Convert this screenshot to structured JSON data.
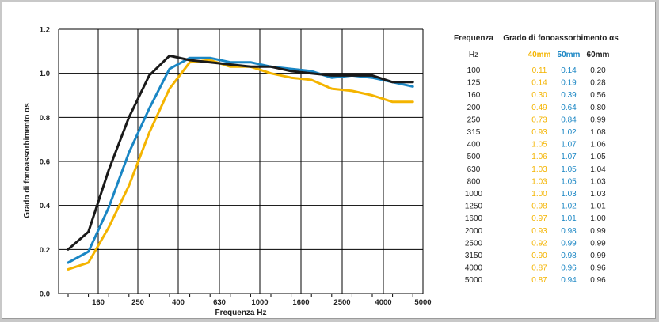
{
  "colors": {
    "s40": "#f4b400",
    "s50": "#1a86c4",
    "s60": "#1a1a1a",
    "grid": "#000000"
  },
  "chart_data": {
    "type": "line",
    "xlabel": "Frequenza  Hz",
    "ylabel": "Grado di fonoassorbimento αs",
    "ylim": [
      0,
      1.2
    ],
    "yticks": [
      "0.0",
      "0.2",
      "0.4",
      "0.6",
      "0.8",
      "1.0",
      "1.2"
    ],
    "xtick_labels": [
      "160",
      "250",
      "400",
      "630",
      "1000",
      "1600",
      "2500",
      "4000",
      "5000"
    ],
    "x": [
      "100",
      "125",
      "160",
      "200",
      "250",
      "315",
      "400",
      "500",
      "630",
      "800",
      "1000",
      "1250",
      "1600",
      "2000",
      "2500",
      "3150",
      "4000",
      "5000"
    ],
    "series": [
      {
        "name": "40mm",
        "values": [
          0.11,
          0.14,
          0.3,
          0.49,
          0.73,
          0.93,
          1.05,
          1.06,
          1.03,
          1.03,
          1.0,
          0.98,
          0.97,
          0.93,
          0.92,
          0.9,
          0.87,
          0.87
        ]
      },
      {
        "name": "50mm",
        "values": [
          0.14,
          0.19,
          0.39,
          0.64,
          0.84,
          1.02,
          1.07,
          1.07,
          1.05,
          1.05,
          1.03,
          1.02,
          1.01,
          0.98,
          0.99,
          0.98,
          0.96,
          0.94
        ]
      },
      {
        "name": "60mm",
        "values": [
          0.2,
          0.28,
          0.56,
          0.8,
          0.99,
          1.08,
          1.06,
          1.05,
          1.04,
          1.03,
          1.03,
          1.01,
          1.0,
          0.99,
          0.99,
          0.99,
          0.96,
          0.96
        ]
      }
    ],
    "grid": true
  },
  "table": {
    "col_freq": "Frequenza",
    "col_grade": "Grado di fonoassorbimento αs",
    "unit": "Hz",
    "col_40": "40mm",
    "col_50": "50mm",
    "col_60": "60mm",
    "rows": [
      [
        "100",
        "0.11",
        "0.14",
        "0.20"
      ],
      [
        "125",
        "0.14",
        "0.19",
        "0.28"
      ],
      [
        "160",
        "0.30",
        "0.39",
        "0.56"
      ],
      [
        "200",
        "0.49",
        "0.64",
        "0.80"
      ],
      [
        "250",
        "0.73",
        "0.84",
        "0.99"
      ],
      [
        "315",
        "0.93",
        "1.02",
        "1.08"
      ],
      [
        "400",
        "1.05",
        "1.07",
        "1.06"
      ],
      [
        "500",
        "1.06",
        "1.07",
        "1.05"
      ],
      [
        "630",
        "1.03",
        "1.05",
        "1.04"
      ],
      [
        "800",
        "1.03",
        "1.05",
        "1.03"
      ],
      [
        "1000",
        "1.00",
        "1.03",
        "1.03"
      ],
      [
        "1250",
        "0.98",
        "1.02",
        "1.01"
      ],
      [
        "1600",
        "0.97",
        "1.01",
        "1.00"
      ],
      [
        "2000",
        "0.93",
        "0.98",
        "0.99"
      ],
      [
        "2500",
        "0.92",
        "0.99",
        "0.99"
      ],
      [
        "3150",
        "0.90",
        "0.98",
        "0.99"
      ],
      [
        "4000",
        "0.87",
        "0.96",
        "0.96"
      ],
      [
        "5000",
        "0.87",
        "0.94",
        "0.96"
      ]
    ]
  }
}
